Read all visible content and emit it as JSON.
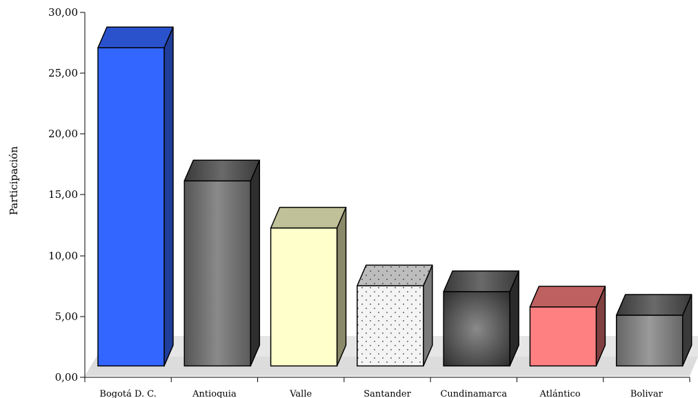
{
  "chart_data": {
    "type": "bar",
    "title": "",
    "xlabel": "",
    "ylabel": "Participación",
    "ylim": [
      0,
      30
    ],
    "yticks": [
      "0,00",
      "5,00",
      "10,00",
      "15,00",
      "20,00",
      "25,00",
      "30,00"
    ],
    "categories": [
      "Bogotá D. C.",
      "Antioquia",
      "Valle",
      "Santander",
      "Cundinamarca",
      "Atlántico",
      "Bolivar"
    ],
    "values": [
      27.0,
      15.7,
      11.7,
      6.8,
      6.3,
      5.0,
      4.3
    ],
    "bar_colors": [
      "#3366ff",
      "#6e6e6e",
      "#ffffcc",
      "#f2f2f2",
      "#555555",
      "#ff8080",
      "#777777"
    ],
    "grid": false,
    "legend": "none",
    "style": "3d"
  }
}
